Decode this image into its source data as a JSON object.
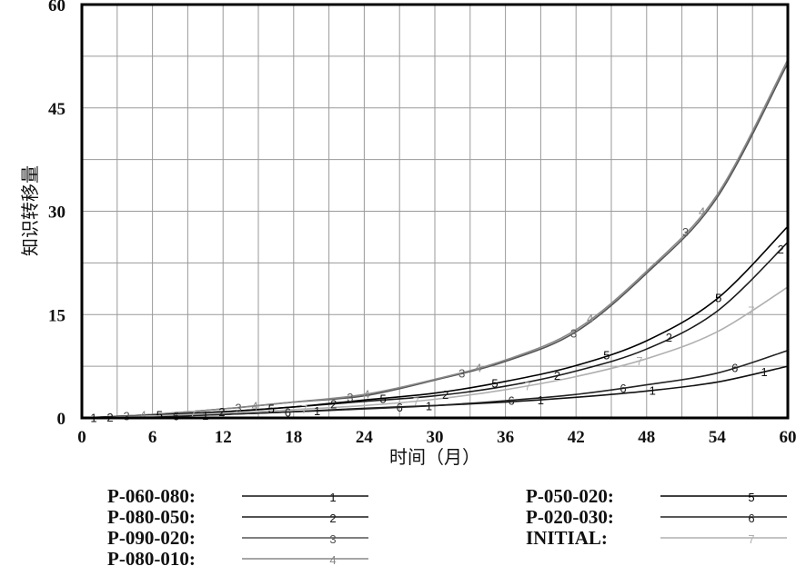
{
  "chart_data": {
    "type": "line",
    "title": "",
    "xlabel": "时间（月）",
    "ylabel": "知识转移量",
    "xlim": [
      0,
      60
    ],
    "ylim": [
      0,
      60
    ],
    "xticks": [
      "0",
      "6",
      "12",
      "18",
      "24",
      "30",
      "36",
      "42",
      "48",
      "54",
      "60"
    ],
    "yticks": [
      "0",
      "15",
      "30",
      "45",
      "60"
    ],
    "grid": true,
    "legend_position": "bottom",
    "x": [
      0,
      6,
      12,
      18,
      24,
      30,
      36,
      42,
      48,
      54,
      60
    ],
    "series": [
      {
        "name": "P-060-080:",
        "marker": "1",
        "color": "#111111",
        "values": [
          0,
          0.2,
          0.5,
          0.9,
          1.4,
          1.8,
          2.3,
          3.0,
          3.9,
          5.2,
          7.5
        ]
      },
      {
        "name": "P-080-050:",
        "marker": "2",
        "color": "#1a1a1a",
        "values": [
          0,
          0.4,
          0.9,
          1.6,
          2.4,
          3.2,
          4.6,
          6.8,
          10.0,
          15.5,
          25.5
        ]
      },
      {
        "name": "P-090-020:",
        "marker": "3",
        "color": "#555555",
        "values": [
          0,
          0.5,
          1.3,
          2.3,
          3.2,
          5.5,
          8.2,
          12.5,
          21.0,
          32.0,
          51.5
        ]
      },
      {
        "name": "P-080-010:",
        "marker": "4",
        "color": "#888888",
        "values": [
          0,
          0.5,
          1.3,
          2.3,
          3.4,
          5.6,
          8.4,
          12.8,
          21.3,
          32.4,
          52.0
        ]
      },
      {
        "name": "P-050-020:",
        "marker": "5",
        "color": "#000000",
        "values": [
          0,
          0.4,
          0.9,
          1.6,
          2.6,
          3.6,
          5.3,
          7.6,
          11.2,
          17.3,
          27.8
        ]
      },
      {
        "name": "P-020-030:",
        "marker": "6",
        "color": "#222222",
        "values": [
          0,
          0.2,
          0.5,
          0.9,
          1.3,
          1.8,
          2.5,
          3.4,
          4.8,
          6.5,
          9.8
        ]
      },
      {
        "name": "INITIAL:",
        "marker": "7",
        "color": "#b0b0b0",
        "values": [
          0,
          0.3,
          0.7,
          1.2,
          1.8,
          2.7,
          4.1,
          6.0,
          8.6,
          12.5,
          19.0
        ]
      }
    ]
  }
}
